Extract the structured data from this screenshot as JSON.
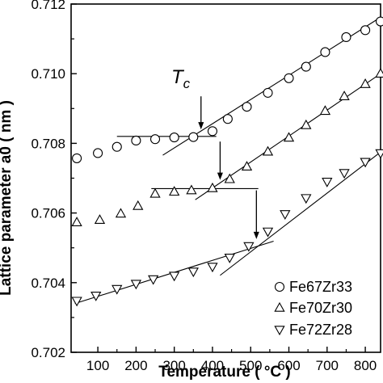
{
  "chart_data": {
    "type": "scatter",
    "title": "",
    "xlabel": "Temperature ( °C )",
    "ylabel": "Lattice parameter a0 ( nm )",
    "xlim": [
      30,
      840
    ],
    "ylim": [
      0.702,
      0.712
    ],
    "xticks": [
      100,
      200,
      300,
      400,
      500,
      600,
      700,
      800
    ],
    "yticks": [
      "0.702",
      "0.704",
      "0.706",
      "0.708",
      "0.710",
      "0.712"
    ],
    "grid": false,
    "legend_position": "bottom-right",
    "annotation": {
      "label": "Tc",
      "sub": "c",
      "main": "T"
    },
    "series": [
      {
        "name": "Fe67Zr33",
        "marker": "circle",
        "x": [
          45,
          100,
          150,
          200,
          250,
          300,
          350,
          400,
          440,
          490,
          545,
          600,
          645,
          695,
          750,
          800,
          840
        ],
        "y": [
          0.70757,
          0.70772,
          0.7079,
          0.70808,
          0.70812,
          0.70817,
          0.70818,
          0.70835,
          0.7087,
          0.70905,
          0.70945,
          0.70987,
          0.7102,
          0.71062,
          0.71105,
          0.71125,
          0.7115
        ],
        "fit_lines": [
          {
            "x": [
              150,
              410
            ],
            "y": [
              0.7082,
              0.7082
            ]
          },
          {
            "x": [
              270,
              840
            ],
            "y": [
              0.70766,
              0.71162
            ]
          }
        ],
        "tc": 370
      },
      {
        "name": "Fe70Zr30",
        "marker": "triangle-up",
        "x": [
          45,
          105,
          160,
          205,
          250,
          300,
          345,
          400,
          445,
          490,
          545,
          600,
          645,
          695,
          745,
          800,
          840
        ],
        "y": [
          0.70573,
          0.7058,
          0.70598,
          0.7062,
          0.70655,
          0.70661,
          0.70665,
          0.70671,
          0.70697,
          0.70733,
          0.70776,
          0.70816,
          0.70852,
          0.70893,
          0.70935,
          0.7097,
          0.71
        ],
        "fit_lines": [
          {
            "x": [
              240,
              520
            ],
            "y": [
              0.7067,
              0.7067
            ]
          },
          {
            "x": [
              355,
              840
            ],
            "y": [
              0.70638,
              0.71
            ]
          }
        ],
        "tc": 420
      },
      {
        "name": "Fe72Zr28",
        "marker": "triangle-down",
        "x": [
          45,
          95,
          150,
          200,
          245,
          300,
          350,
          400,
          445,
          495,
          545,
          590,
          645,
          700,
          745,
          800,
          840
        ],
        "y": [
          0.70348,
          0.70363,
          0.70382,
          0.70397,
          0.7041,
          0.7042,
          0.70432,
          0.70446,
          0.70472,
          0.70505,
          0.70547,
          0.70597,
          0.70643,
          0.7069,
          0.70715,
          0.70747,
          0.70772
        ],
        "fit_lines": [
          {
            "x": [
              40,
              560
            ],
            "y": [
              0.7034,
              0.70519
            ]
          },
          {
            "x": [
              420,
              840
            ],
            "y": [
              0.70421,
              0.70775
            ]
          }
        ],
        "tc": 515
      }
    ],
    "tc_arrows": [
      {
        "x": 370,
        "y_from": 0.70935,
        "y_to": 0.7084
      },
      {
        "x": 420,
        "y_from": 0.70805,
        "y_to": 0.70695
      },
      {
        "x": 515,
        "y_from": 0.70665,
        "y_to": 0.70525
      }
    ]
  }
}
